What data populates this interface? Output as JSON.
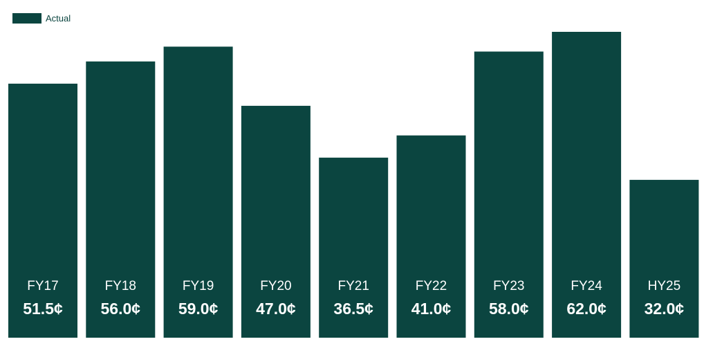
{
  "chart_data": {
    "type": "bar",
    "categories": [
      "FY17",
      "FY18",
      "FY19",
      "FY20",
      "FY21",
      "FY22",
      "FY23",
      "FY24",
      "HY25"
    ],
    "series": [
      {
        "name": "Actual",
        "values": [
          51.5,
          56.0,
          59.0,
          47.0,
          36.5,
          41.0,
          58.0,
          62.0,
          32.0
        ],
        "value_labels": [
          "51.5¢",
          "56.0¢",
          "59.0¢",
          "47.0¢",
          "36.5¢",
          "41.0¢",
          "58.0¢",
          "62.0¢",
          "32.0¢"
        ]
      }
    ],
    "title": "",
    "xlabel": "",
    "ylabel": "",
    "ylim": [
      0,
      66
    ],
    "grid": false,
    "legend": "top-left",
    "colors": {
      "bar": "#0b4540",
      "label": "#ffffff"
    }
  }
}
